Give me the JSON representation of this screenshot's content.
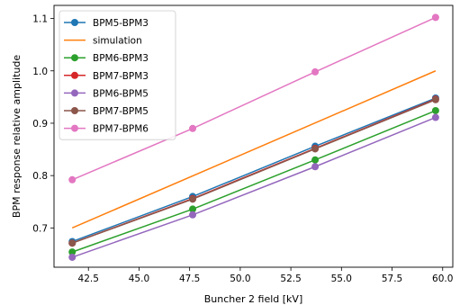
{
  "chart_data": {
    "type": "line",
    "title": "",
    "xlabel": "Buncher 2 field [kV]",
    "ylabel": "BPM response relative amplitude",
    "xlim": [
      40.8,
      60.5
    ],
    "ylim": [
      0.625,
      1.125
    ],
    "xticks": [
      "42.5",
      "45.0",
      "47.5",
      "50.0",
      "52.5",
      "55.0",
      "57.5",
      "60.0"
    ],
    "yticks": [
      "0.7",
      "0.8",
      "0.9",
      "1.0",
      "1.1"
    ],
    "grid": false,
    "legend_position": "upper-left",
    "series": [
      {
        "name": "BPM5-BPM3",
        "color": "#1f77b4",
        "marker": true,
        "x": [
          41.7,
          47.65,
          53.7,
          59.65
        ],
        "y": [
          0.674,
          0.76,
          0.856,
          0.948
        ]
      },
      {
        "name": "simulation",
        "color": "#ff7f0e",
        "marker": false,
        "x": [
          41.7,
          59.65
        ],
        "y": [
          0.7,
          1.0
        ]
      },
      {
        "name": "BPM6-BPM3",
        "color": "#2ca02c",
        "marker": true,
        "x": [
          41.7,
          47.65,
          53.7,
          59.65
        ],
        "y": [
          0.654,
          0.736,
          0.83,
          0.924
        ]
      },
      {
        "name": "BPM7-BPM3",
        "color": "#d62728",
        "marker": true,
        "x": [
          41.7,
          47.65,
          53.7,
          59.65
        ],
        "y": [
          0.671,
          0.756,
          0.852,
          0.946
        ]
      },
      {
        "name": "BPM6-BPM5",
        "color": "#9467bd",
        "marker": true,
        "x": [
          41.7,
          47.65,
          53.7,
          59.65
        ],
        "y": [
          0.644,
          0.725,
          0.817,
          0.911
        ]
      },
      {
        "name": "BPM7-BPM5",
        "color": "#8c564b",
        "marker": true,
        "x": [
          41.7,
          47.65,
          53.7,
          59.65
        ],
        "y": [
          0.671,
          0.755,
          0.851,
          0.945
        ]
      },
      {
        "name": "BPM7-BPM6",
        "color": "#e377c2",
        "marker": true,
        "x": [
          41.7,
          47.65,
          53.7,
          59.65
        ],
        "y": [
          0.792,
          0.89,
          0.998,
          1.102
        ]
      }
    ]
  }
}
